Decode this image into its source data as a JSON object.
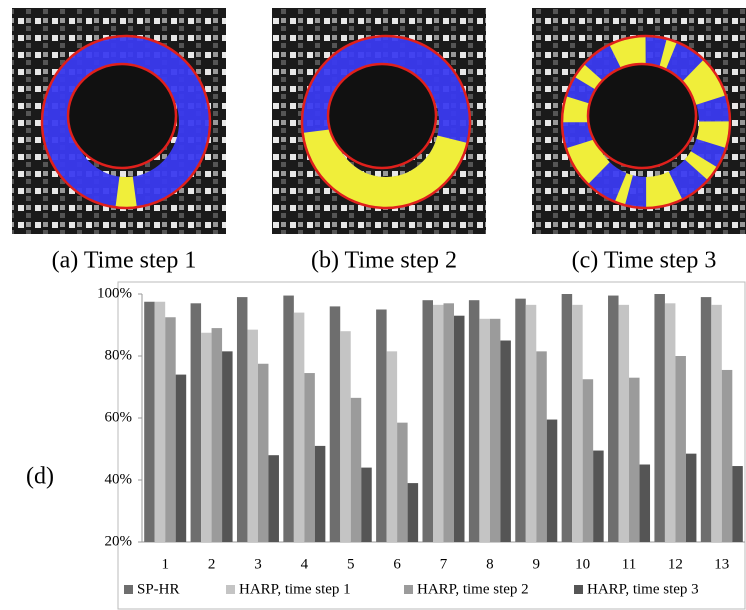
{
  "panels": [
    {
      "caption": "(a) Time step 1"
    },
    {
      "caption": "(b) Time step 2"
    },
    {
      "caption": "(c) Time step 3"
    }
  ],
  "panel_label": "(d)",
  "chart_data": {
    "type": "bar",
    "categories": [
      "1",
      "2",
      "3",
      "4",
      "5",
      "6",
      "7",
      "8",
      "9",
      "10",
      "11",
      "12",
      "13"
    ],
    "series": [
      {
        "name": "SP-HR",
        "color": "#6e6e6e",
        "values": [
          97.5,
          97,
          99,
          99.5,
          96,
          95,
          98,
          98,
          98.5,
          100,
          99.5,
          100,
          99
        ]
      },
      {
        "name": "HARP, time step 1",
        "color": "#c4c4c4",
        "values": [
          97.5,
          87.5,
          88.5,
          94,
          88,
          81.5,
          96.5,
          92,
          96.5,
          96.5,
          96.5,
          97,
          96.5
        ]
      },
      {
        "name": "HARP, time step 2",
        "color": "#9b9b9b",
        "values": [
          92.5,
          89,
          77.5,
          74.5,
          66.5,
          58.5,
          97,
          92,
          81.5,
          72.5,
          73,
          80,
          75.5
        ]
      },
      {
        "name": "HARP, time step 3",
        "color": "#555555",
        "values": [
          74,
          81.5,
          48,
          51,
          44,
          39,
          93,
          85,
          59.5,
          49.5,
          45,
          48.5,
          44.5
        ]
      }
    ],
    "ylim": [
      20,
      100
    ],
    "yticks": [
      {
        "value": 20,
        "label": "20%"
      },
      {
        "value": 40,
        "label": "40%"
      },
      {
        "value": 60,
        "label": "60%"
      },
      {
        "value": 80,
        "label": "80%"
      },
      {
        "value": 100,
        "label": "100%"
      }
    ]
  }
}
